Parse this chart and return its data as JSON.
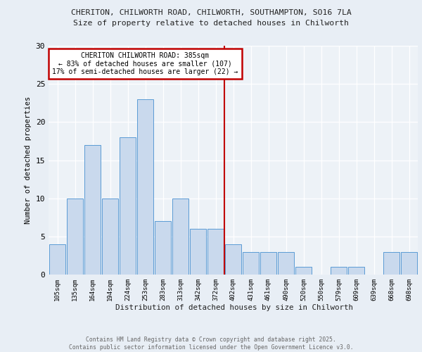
{
  "title1": "CHERITON, CHILWORTH ROAD, CHILWORTH, SOUTHAMPTON, SO16 7LA",
  "title2": "Size of property relative to detached houses in Chilworth",
  "xlabel": "Distribution of detached houses by size in Chilworth",
  "ylabel": "Number of detached properties",
  "categories": [
    "105sqm",
    "135sqm",
    "164sqm",
    "194sqm",
    "224sqm",
    "253sqm",
    "283sqm",
    "313sqm",
    "342sqm",
    "372sqm",
    "402sqm",
    "431sqm",
    "461sqm",
    "490sqm",
    "520sqm",
    "550sqm",
    "579sqm",
    "609sqm",
    "639sqm",
    "668sqm",
    "698sqm"
  ],
  "values": [
    4,
    10,
    17,
    10,
    18,
    23,
    7,
    10,
    6,
    6,
    4,
    3,
    3,
    3,
    1,
    0,
    1,
    1,
    0,
    3,
    3
  ],
  "bar_color": "#c9d9ed",
  "bar_edge_color": "#5b9bd5",
  "vline_x": 9.5,
  "vline_color": "#c00000",
  "annotation_title": "CHERITON CHILWORTH ROAD: 385sqm",
  "annotation_line2": "← 83% of detached houses are smaller (107)",
  "annotation_line3": "17% of semi-detached houses are larger (22) →",
  "annotation_box_color": "#c00000",
  "ylim": [
    0,
    30
  ],
  "yticks": [
    0,
    5,
    10,
    15,
    20,
    25,
    30
  ],
  "footer": "Contains HM Land Registry data © Crown copyright and database right 2025.\nContains public sector information licensed under the Open Government Licence v3.0.",
  "bg_color": "#e8eef5",
  "plot_bg_color": "#edf2f7"
}
